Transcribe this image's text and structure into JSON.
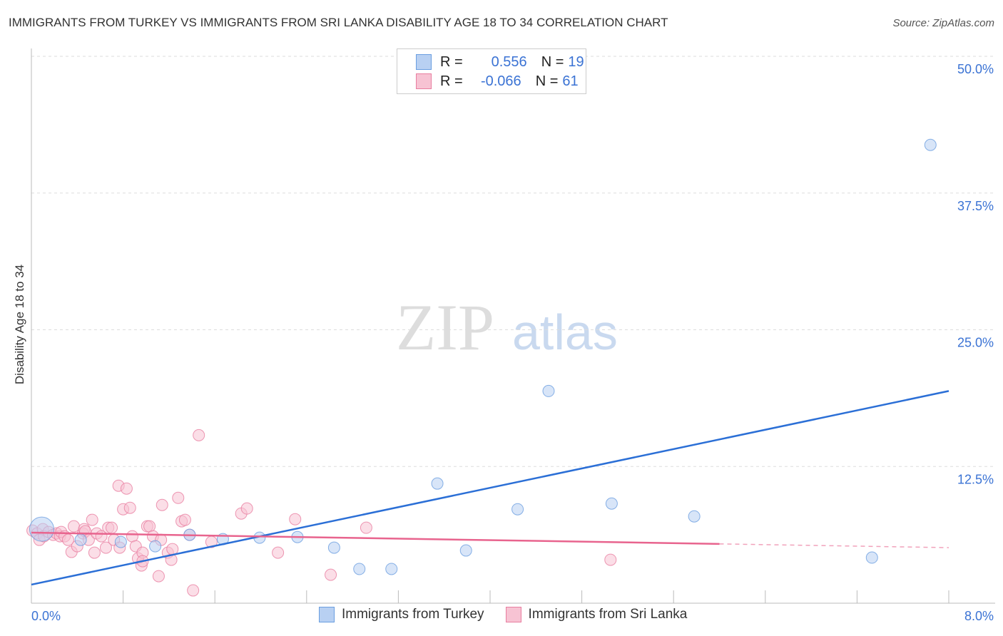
{
  "chart_data": {
    "type": "scatter",
    "title": "IMMIGRANTS FROM TURKEY VS IMMIGRANTS FROM SRI LANKA DISABILITY AGE 18 TO 34 CORRELATION CHART",
    "source": "Source: ZipAtlas.com",
    "xlabel": "",
    "ylabel": "Disability Age 18 to 34",
    "xlim": [
      0,
      8
    ],
    "ylim": [
      0,
      50
    ],
    "x_tick_labels": [
      "0.0%",
      "8.0%"
    ],
    "y_tick_labels": [
      "12.5%",
      "25.0%",
      "37.5%",
      "50.0%"
    ],
    "y_ticks": [
      12.5,
      25,
      37.5,
      50
    ],
    "watermark": "ZIPatlas",
    "legend": {
      "rows": [
        {
          "r_label": "R =",
          "r": "0.556",
          "n_label": "N =",
          "n": "19"
        },
        {
          "r_label": "R =",
          "r": "-0.066",
          "n_label": "N =",
          "n": "61"
        }
      ]
    },
    "series": [
      {
        "name": "Immigrants from Turkey",
        "color": "#6a9ee0",
        "fill": "#b8d0f2",
        "trend": {
          "x": [
            0,
            8
          ],
          "y": [
            1.7,
            19.4
          ],
          "solid_to": 8
        },
        "points": [
          [
            0.09,
            6.77
          ],
          [
            0.43,
            5.79
          ],
          [
            0.78,
            5.6
          ],
          [
            1.08,
            5.21
          ],
          [
            1.38,
            6.25
          ],
          [
            1.67,
            5.86
          ],
          [
            1.99,
            5.99
          ],
          [
            2.32,
            6.05
          ],
          [
            2.64,
            5.08
          ],
          [
            2.86,
            3.13
          ],
          [
            3.14,
            3.13
          ],
          [
            3.54,
            10.94
          ],
          [
            3.79,
            4.82
          ],
          [
            4.24,
            8.59
          ],
          [
            4.51,
            19.4
          ],
          [
            5.06,
            9.11
          ],
          [
            5.78,
            7.94
          ],
          [
            7.33,
            4.17
          ],
          [
            7.84,
            41.9
          ]
        ]
      },
      {
        "name": "Immigrants from Sri Lanka",
        "color": "#e87ea0",
        "fill": "#f7c3d3",
        "trend": {
          "x": [
            0,
            8
          ],
          "y": [
            6.45,
            5.08
          ],
          "solid_to": 6.0
        },
        "points": [
          [
            0.01,
            6.64
          ],
          [
            0.05,
            6.38
          ],
          [
            0.07,
            5.79
          ],
          [
            0.1,
            6.77
          ],
          [
            0.11,
            6.12
          ],
          [
            0.15,
            6.51
          ],
          [
            0.19,
            6.25
          ],
          [
            0.22,
            6.38
          ],
          [
            0.25,
            6.12
          ],
          [
            0.26,
            6.51
          ],
          [
            0.29,
            6.12
          ],
          [
            0.32,
            5.79
          ],
          [
            0.35,
            4.69
          ],
          [
            0.37,
            7.03
          ],
          [
            0.4,
            5.21
          ],
          [
            0.45,
            6.38
          ],
          [
            0.46,
            6.77
          ],
          [
            0.47,
            6.58
          ],
          [
            0.5,
            5.79
          ],
          [
            0.53,
            7.62
          ],
          [
            0.55,
            4.62
          ],
          [
            0.57,
            6.38
          ],
          [
            0.61,
            6.12
          ],
          [
            0.65,
            5.08
          ],
          [
            0.67,
            6.9
          ],
          [
            0.7,
            6.9
          ],
          [
            0.72,
            5.79
          ],
          [
            0.76,
            10.74
          ],
          [
            0.77,
            5.08
          ],
          [
            0.8,
            8.59
          ],
          [
            0.83,
            10.48
          ],
          [
            0.86,
            8.72
          ],
          [
            0.88,
            6.12
          ],
          [
            0.91,
            5.21
          ],
          [
            0.93,
            4.1
          ],
          [
            0.96,
            3.45
          ],
          [
            0.97,
            4.62
          ],
          [
            0.97,
            3.84
          ],
          [
            1.01,
            7.03
          ],
          [
            1.03,
            7.03
          ],
          [
            1.06,
            6.12
          ],
          [
            1.11,
            2.47
          ],
          [
            1.13,
            5.79
          ],
          [
            1.14,
            8.98
          ],
          [
            1.19,
            4.62
          ],
          [
            1.22,
            3.97
          ],
          [
            1.23,
            4.95
          ],
          [
            1.28,
            9.63
          ],
          [
            1.31,
            7.49
          ],
          [
            1.34,
            7.62
          ],
          [
            1.38,
            6.25
          ],
          [
            1.41,
            1.17
          ],
          [
            1.46,
            15.36
          ],
          [
            1.57,
            5.6
          ],
          [
            1.83,
            8.2
          ],
          [
            1.88,
            8.66
          ],
          [
            2.15,
            4.62
          ],
          [
            2.3,
            7.68
          ],
          [
            2.61,
            2.6
          ],
          [
            2.92,
            6.9
          ],
          [
            5.05,
            3.97
          ]
        ]
      }
    ]
  }
}
